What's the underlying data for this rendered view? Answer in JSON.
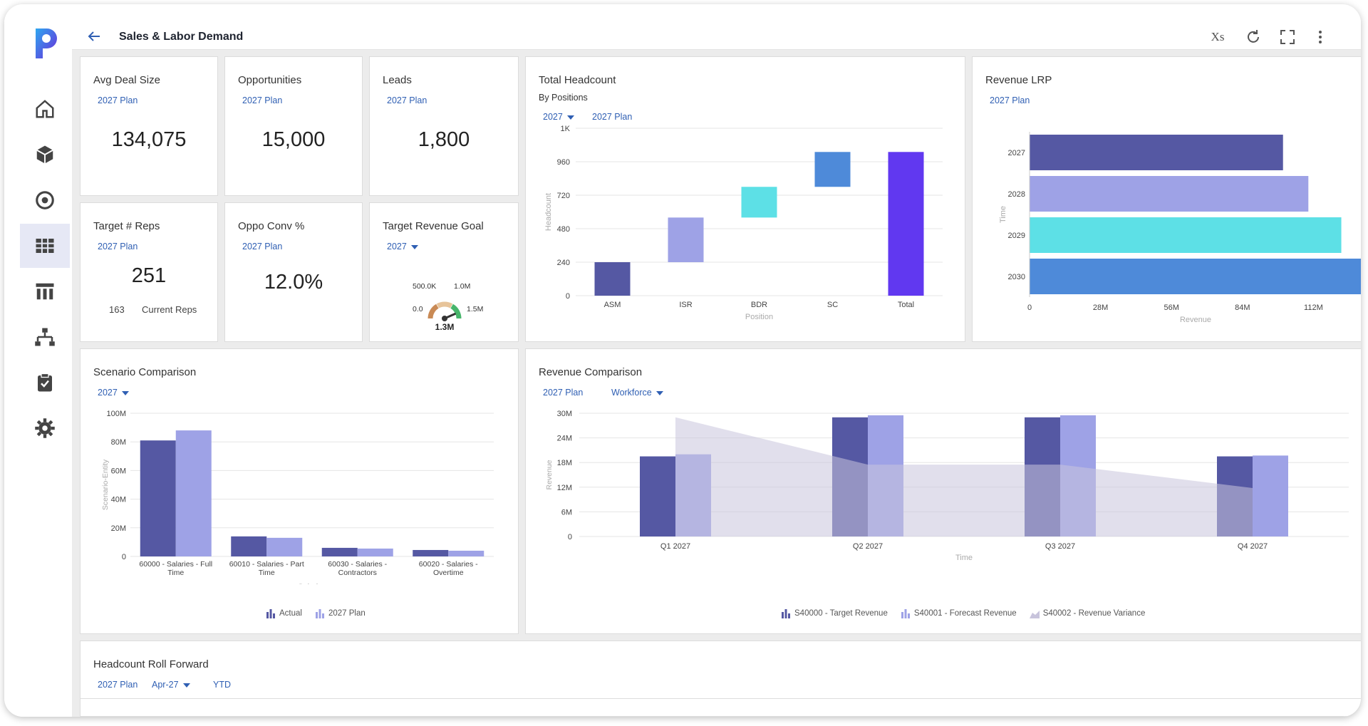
{
  "colors": {
    "series_dark": "#5558a3",
    "series_light": "#9ea2e6",
    "cyan": "#5de0e6",
    "blue": "#4e8ad9",
    "purple": "#6138f0",
    "area": "#c8c4dc",
    "link": "#2f5fb3"
  },
  "icons": {
    "logo": "p-logo",
    "nav": [
      "home-icon",
      "cube-icon",
      "target-icon",
      "grid-icon",
      "columns-icon",
      "hierarchy-icon",
      "clipboard-icon",
      "gear-icon"
    ],
    "top": [
      "formula-icon",
      "refresh-icon",
      "fullscreen-icon",
      "more-icon"
    ]
  },
  "header": {
    "title": "Sales & Labor Demand",
    "formula_label": "Xs"
  },
  "kpis": {
    "avg_deal": {
      "title": "Avg Deal Size",
      "plan": "2027 Plan",
      "value": "134,075"
    },
    "opportunities": {
      "title": "Opportunities",
      "plan": "2027 Plan",
      "value": "15,000"
    },
    "leads": {
      "title": "Leads",
      "plan": "2027 Plan",
      "value": "1,800"
    },
    "target_reps": {
      "title": "Target # Reps",
      "plan": "2027 Plan",
      "value": "251",
      "current_value": "163",
      "current_label": "Current Reps"
    },
    "oppo_conv": {
      "title": "Oppo Conv %",
      "plan": "2027 Plan",
      "value": "12.0%"
    },
    "target_revenue": {
      "title": "Target Revenue Goal",
      "year": "2027",
      "gauge_min": "0.0",
      "gauge_mid": "500.0K",
      "gauge_high": "1.0M",
      "gauge_max": "1.5M",
      "gauge_value": "1.3M",
      "gauge_fraction": 0.8667
    }
  },
  "headcount": {
    "title": "Total Headcount",
    "subtitle": "By Positions",
    "year": "2027",
    "plan": "2027 Plan",
    "chart_data": {
      "type": "bar",
      "subtype": "waterfall",
      "categories": [
        "ASM",
        "ISR",
        "BDR",
        "SC",
        "Total"
      ],
      "values": [
        240,
        320,
        220,
        250,
        1030
      ],
      "base": [
        0,
        240,
        560,
        780,
        0
      ],
      "colors": [
        "#5558a3",
        "#9ea2e6",
        "#5de0e6",
        "#4e8ad9",
        "#6138f0"
      ],
      "yticks": [
        "0",
        "240",
        "480",
        "720",
        "960",
        "1K"
      ],
      "ytick_values": [
        0,
        240,
        480,
        720,
        960,
        1200
      ],
      "ylim": [
        0,
        1200
      ],
      "xlabel": "Position",
      "ylabel": "Headcount",
      "grid": true
    }
  },
  "revenue_lrp": {
    "title": "Revenue LRP",
    "plan": "2027 Plan",
    "chart_data": {
      "type": "bar",
      "orientation": "horizontal",
      "categories": [
        "2027",
        "2028",
        "2029",
        "2030"
      ],
      "values": [
        100000000,
        110000000,
        123000000,
        135000000
      ],
      "colors": [
        "#5558a3",
        "#9ea2e6",
        "#5de0e6",
        "#4e8ad9"
      ],
      "xticks": [
        "0",
        "28M",
        "56M",
        "84M",
        "112M"
      ],
      "xtick_values": [
        0,
        28000000,
        56000000,
        84000000,
        112000000
      ],
      "xlim": [
        0,
        131000000
      ],
      "xlabel": "Revenue",
      "ylabel": "Time",
      "grid": false
    }
  },
  "scenario": {
    "title": "Scenario Comparison",
    "year": "2027",
    "chart_data": {
      "type": "bar",
      "categories": [
        "60000 - Salaries - Full Time",
        "60010 - Salaries - Part Time",
        "60030 - Salaries - Contractors",
        "60020 - Salaries - Overtime"
      ],
      "category_lines": [
        [
          "60000 - Salaries - Full",
          "Time"
        ],
        [
          "60010 - Salaries - Part",
          "Time"
        ],
        [
          "60030 - Salaries -",
          "Contractors"
        ],
        [
          "60020 - Salaries -",
          "Overtime"
        ]
      ],
      "series": [
        {
          "name": "Actual",
          "values": [
            81000000,
            14000000,
            6000000,
            4500000
          ]
        },
        {
          "name": "2027 Plan",
          "values": [
            88000000,
            13000000,
            5500000,
            4000000
          ]
        }
      ],
      "yticks": [
        "0",
        "20M",
        "40M",
        "60M",
        "80M",
        "100M"
      ],
      "ytick_values": [
        0,
        20000000,
        40000000,
        60000000,
        80000000,
        100000000
      ],
      "ylim": [
        0,
        100000000
      ],
      "xlabel": "Salaries",
      "ylabel": "Scenario-Entity",
      "grid": true,
      "legend_position": "bottom"
    }
  },
  "revenue_comparison": {
    "title": "Revenue Comparison",
    "plan": "2027 Plan",
    "filter": "Workforce",
    "chart_data": {
      "type": "bar",
      "categories": [
        "Q1 2027",
        "Q2 2027",
        "Q3 2027",
        "Q4 2027"
      ],
      "series": [
        {
          "name": "S40000 - Target Revenue",
          "type": "bar",
          "values": [
            19500000,
            29000000,
            29000000,
            19500000
          ]
        },
        {
          "name": "S40001 - Forecast Revenue",
          "type": "bar",
          "values": [
            20000000,
            29500000,
            29500000,
            19700000
          ]
        },
        {
          "name": "S40002 - Revenue Variance",
          "type": "area",
          "values": [
            29000000,
            17500000,
            17500000,
            11800000
          ]
        }
      ],
      "yticks": [
        "0",
        "6M",
        "12M",
        "18M",
        "24M",
        "30M"
      ],
      "ytick_values": [
        0,
        6000000,
        12000000,
        18000000,
        24000000,
        30000000
      ],
      "ylim": [
        0,
        30000000
      ],
      "xlabel": "Time",
      "ylabel": "Revenue",
      "grid": true,
      "legend_position": "bottom"
    }
  },
  "roll_forward": {
    "title": "Headcount Roll Forward",
    "plan": "2027 Plan",
    "period": "Apr-27",
    "range": "YTD"
  }
}
